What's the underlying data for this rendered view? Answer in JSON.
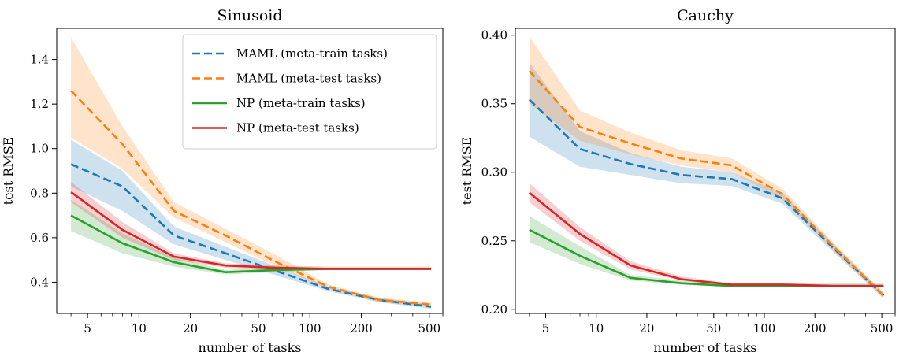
{
  "chart_data": [
    {
      "type": "line",
      "title": "Sinusoid",
      "xlabel": "number of tasks",
      "ylabel": "test RMSE",
      "xscale": "log",
      "xlim": [
        3.3,
        600
      ],
      "ylim": [
        0.26,
        1.54
      ],
      "xticks": [
        5,
        10,
        20,
        50,
        100,
        200,
        500
      ],
      "xtick_labels": [
        "5",
        "10",
        "20",
        "50",
        "100",
        "200",
        "500"
      ],
      "yticks": [
        0.4,
        0.6,
        0.8,
        1.0,
        1.2,
        1.4
      ],
      "ytick_labels": [
        "0.4",
        "0.6",
        "0.8",
        "1.0",
        "1.2",
        "1.4"
      ],
      "x": [
        4,
        8,
        16,
        32,
        64,
        128,
        256,
        512
      ],
      "legend": "top-right",
      "legend_entries": [
        "MAML (meta-train tasks)",
        "MAML (meta-test tasks)",
        "NP (meta-train tasks)",
        "NP (meta-test tasks)"
      ],
      "series": [
        {
          "name": "MAML (meta-train tasks)",
          "color": "#1f77b4",
          "style": "dashed",
          "values": [
            0.93,
            0.83,
            0.61,
            0.53,
            0.45,
            0.37,
            0.32,
            0.29
          ],
          "lower": [
            0.83,
            0.72,
            0.57,
            0.5,
            0.43,
            0.36,
            0.31,
            0.28
          ],
          "upper": [
            1.04,
            0.9,
            0.65,
            0.56,
            0.47,
            0.38,
            0.33,
            0.3
          ]
        },
        {
          "name": "MAML (meta-test tasks)",
          "color": "#ff7f0e",
          "style": "dashed",
          "values": [
            1.26,
            1.02,
            0.72,
            0.61,
            0.49,
            0.38,
            0.32,
            0.3
          ],
          "lower": [
            1.05,
            0.91,
            0.69,
            0.58,
            0.47,
            0.37,
            0.31,
            0.29
          ],
          "upper": [
            1.5,
            1.1,
            0.76,
            0.64,
            0.52,
            0.39,
            0.33,
            0.31
          ]
        },
        {
          "name": "NP (meta-train tasks)",
          "color": "#2ca02c",
          "style": "solid",
          "values": [
            0.7,
            0.575,
            0.49,
            0.445,
            0.455,
            0.46,
            0.46,
            0.46
          ],
          "lower": [
            0.63,
            0.53,
            0.47,
            0.435,
            0.445,
            0.455,
            0.455,
            0.455
          ],
          "upper": [
            0.77,
            0.62,
            0.51,
            0.455,
            0.465,
            0.465,
            0.465,
            0.465
          ]
        },
        {
          "name": "NP (meta-test tasks)",
          "color": "#d62728",
          "style": "solid",
          "values": [
            0.805,
            0.635,
            0.515,
            0.475,
            0.465,
            0.46,
            0.46,
            0.46
          ],
          "lower": [
            0.76,
            0.6,
            0.5,
            0.465,
            0.455,
            0.455,
            0.455,
            0.455
          ],
          "upper": [
            0.85,
            0.67,
            0.53,
            0.485,
            0.475,
            0.47,
            0.47,
            0.47
          ]
        }
      ]
    },
    {
      "type": "line",
      "title": "Cauchy",
      "xlabel": "number of tasks",
      "ylabel": "test RMSE",
      "xscale": "log",
      "xlim": [
        3.3,
        600
      ],
      "ylim": [
        0.197,
        0.405
      ],
      "xticks": [
        5,
        10,
        20,
        50,
        100,
        200,
        500
      ],
      "xtick_labels": [
        "5",
        "10",
        "20",
        "50",
        "100",
        "200",
        "500"
      ],
      "yticks": [
        0.2,
        0.25,
        0.3,
        0.35,
        0.4
      ],
      "ytick_labels": [
        "0.20",
        "0.25",
        "0.30",
        "0.35",
        "0.40"
      ],
      "x": [
        4,
        8,
        16,
        32,
        64,
        128,
        256,
        512
      ],
      "series": [
        {
          "name": "MAML (meta-train tasks)",
          "color": "#1f77b4",
          "style": "dashed",
          "values": [
            0.353,
            0.317,
            0.306,
            0.298,
            0.295,
            0.281,
            0.245,
            0.21
          ],
          "lower": [
            0.326,
            0.304,
            0.298,
            0.292,
            0.29,
            0.277,
            0.242,
            0.208
          ],
          "upper": [
            0.38,
            0.33,
            0.314,
            0.304,
            0.3,
            0.285,
            0.248,
            0.212
          ]
        },
        {
          "name": "MAML (meta-test tasks)",
          "color": "#ff7f0e",
          "style": "dashed",
          "values": [
            0.374,
            0.333,
            0.321,
            0.31,
            0.305,
            0.284,
            0.246,
            0.21
          ],
          "lower": [
            0.35,
            0.323,
            0.313,
            0.305,
            0.3,
            0.28,
            0.243,
            0.208
          ],
          "upper": [
            0.399,
            0.345,
            0.329,
            0.316,
            0.31,
            0.288,
            0.249,
            0.212
          ]
        },
        {
          "name": "NP (meta-train tasks)",
          "color": "#2ca02c",
          "style": "solid",
          "values": [
            0.258,
            0.239,
            0.223,
            0.219,
            0.217,
            0.217,
            0.217,
            0.217
          ],
          "lower": [
            0.249,
            0.233,
            0.221,
            0.218,
            0.216,
            0.216,
            0.216,
            0.216
          ],
          "upper": [
            0.268,
            0.246,
            0.225,
            0.221,
            0.219,
            0.219,
            0.219,
            0.219
          ]
        },
        {
          "name": "NP (meta-test tasks)",
          "color": "#d62728",
          "style": "solid",
          "values": [
            0.285,
            0.255,
            0.232,
            0.222,
            0.218,
            0.218,
            0.217,
            0.217
          ],
          "lower": [
            0.278,
            0.25,
            0.229,
            0.221,
            0.217,
            0.217,
            0.216,
            0.216
          ],
          "upper": [
            0.292,
            0.26,
            0.235,
            0.224,
            0.219,
            0.219,
            0.218,
            0.218
          ]
        }
      ]
    }
  ]
}
